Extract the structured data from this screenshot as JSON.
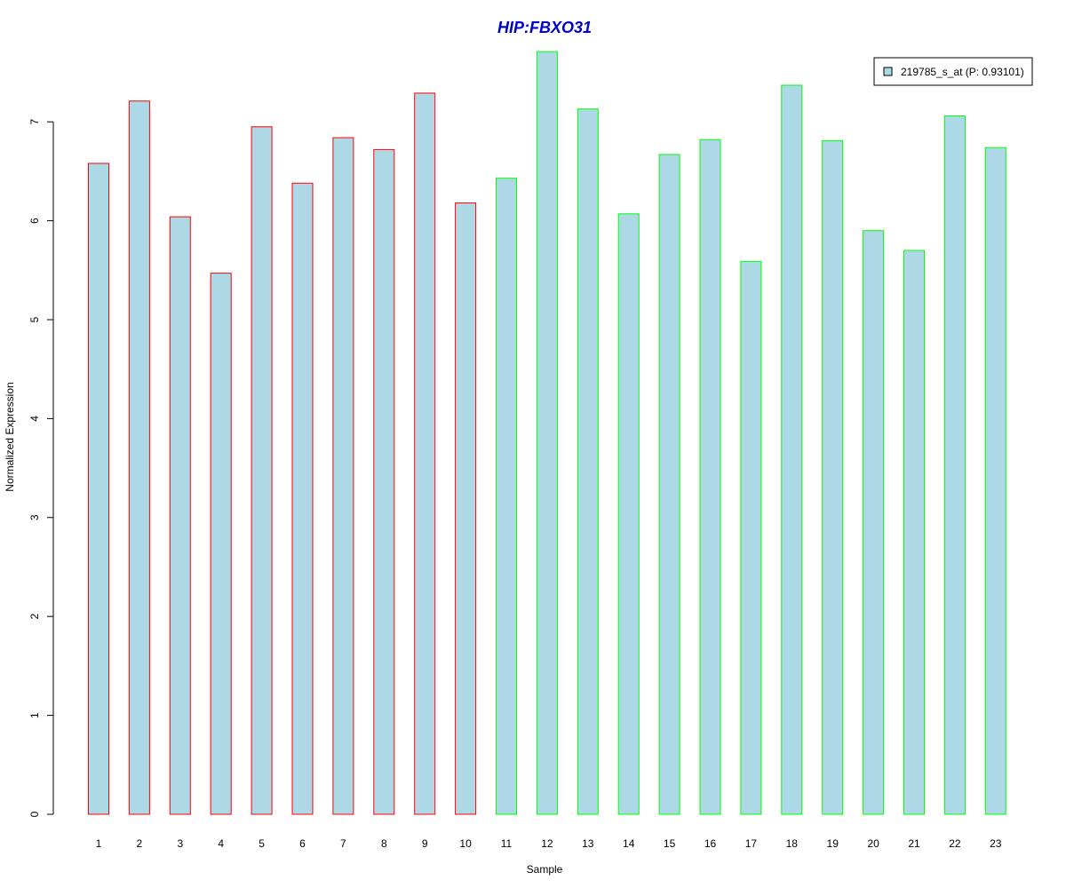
{
  "chart_data": {
    "type": "bar",
    "title": "HIP:FBXO31",
    "xlabel": "Sample",
    "ylabel": "Normalized Expression",
    "ylim": [
      0,
      7.72
    ],
    "yticks": [
      "0",
      "1",
      "2",
      "3",
      "4",
      "5",
      "6",
      "7"
    ],
    "categories": [
      "1",
      "2",
      "3",
      "4",
      "5",
      "6",
      "7",
      "8",
      "9",
      "10",
      "11",
      "12",
      "13",
      "14",
      "15",
      "16",
      "17",
      "18",
      "19",
      "20",
      "21",
      "22",
      "23"
    ],
    "series": [
      {
        "name": "219785_s_at (P: 0.93101)",
        "values": [
          6.58,
          7.21,
          6.04,
          5.47,
          6.95,
          6.38,
          6.84,
          6.72,
          7.29,
          6.18,
          6.43,
          7.71,
          7.13,
          6.07,
          6.67,
          6.82,
          5.59,
          7.37,
          6.81,
          5.9,
          5.7,
          7.06,
          6.74
        ]
      }
    ],
    "group_of_bar": [
      "red",
      "red",
      "red",
      "red",
      "red",
      "red",
      "red",
      "red",
      "red",
      "red",
      "green",
      "green",
      "green",
      "green",
      "green",
      "green",
      "green",
      "green",
      "green",
      "green",
      "green",
      "green",
      "green"
    ],
    "grid": false,
    "legend_position": "top-right"
  },
  "colors": {
    "title": "#0000cc",
    "bar_fill": "#add8e6",
    "red": "#ff0000",
    "green": "#00ff00",
    "axis": "#000000"
  }
}
